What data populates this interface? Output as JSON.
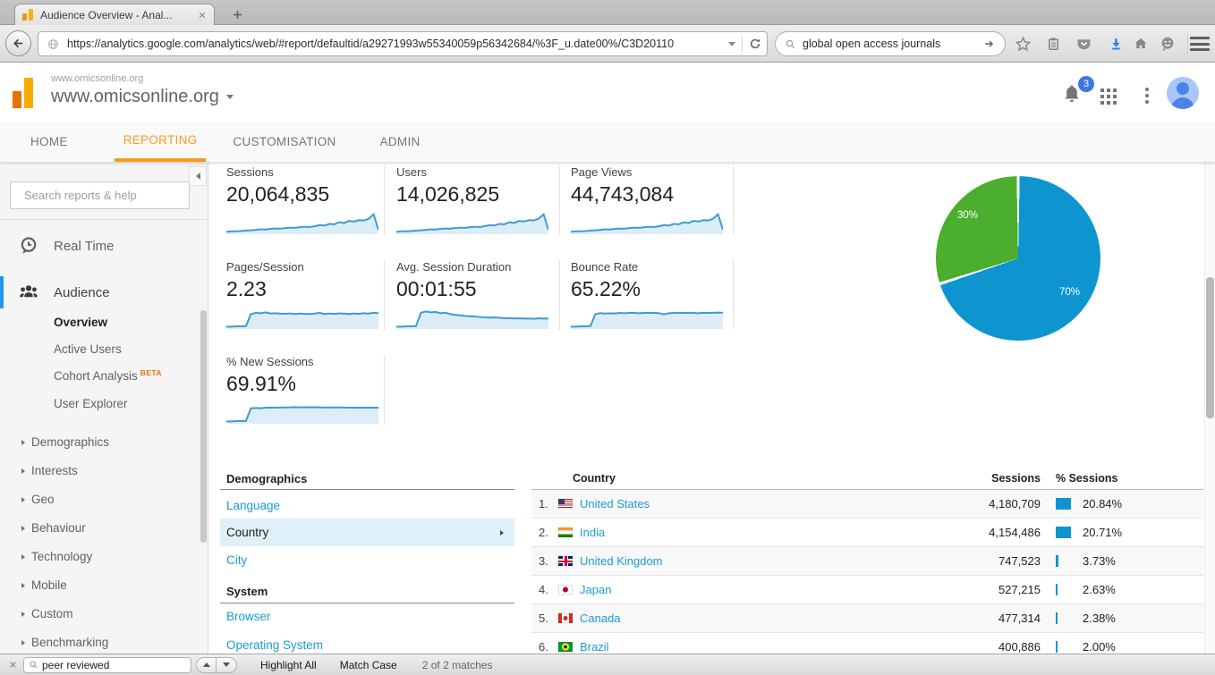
{
  "browser": {
    "tab_title": "Audience Overview - Anal...",
    "url": "https://analytics.google.com/analytics/web/#report/defaultid/a29271993w55340059p56342684/%3F_u.date00%/C3D20110",
    "search_value": "global open access journals"
  },
  "ga_header": {
    "account_small": "www.omicsonline.org",
    "property": "www.omicsonline.org",
    "notification_count": "3"
  },
  "nav": {
    "tabs": [
      {
        "label": "HOME"
      },
      {
        "label": "REPORTING",
        "active": true
      },
      {
        "label": "CUSTOMISATION"
      },
      {
        "label": "ADMIN"
      }
    ]
  },
  "sidebar": {
    "search_placeholder": "Search reports & help",
    "items": [
      {
        "label": "Real Time",
        "icon": "clock-bubble"
      },
      {
        "label": "Audience",
        "icon": "people",
        "active": true
      }
    ],
    "audience_children": [
      "Overview",
      "Active Users",
      "Cohort Analysis",
      "User Explorer"
    ],
    "beta_label": "BETA",
    "expandable": [
      "Demographics",
      "Interests",
      "Geo",
      "Behaviour",
      "Technology",
      "Mobile",
      "Custom",
      "Benchmarking"
    ]
  },
  "metrics": [
    {
      "label": "Sessions",
      "value": "20,064,835",
      "spark": [
        0.06,
        0.08,
        0.09,
        0.1,
        0.12,
        0.13,
        0.15,
        0.18,
        0.17,
        0.2,
        0.22,
        0.21,
        0.24,
        0.26,
        0.25,
        0.28,
        0.3,
        0.29,
        0.33,
        0.38,
        0.36,
        0.44,
        0.42,
        0.52,
        0.48,
        0.58,
        0.55,
        0.62,
        0.6,
        0.68,
        0.9,
        0.15
      ]
    },
    {
      "label": "Users",
      "value": "14,026,825",
      "spark": [
        0.06,
        0.08,
        0.09,
        0.1,
        0.12,
        0.13,
        0.15,
        0.18,
        0.17,
        0.2,
        0.22,
        0.21,
        0.24,
        0.26,
        0.25,
        0.28,
        0.3,
        0.29,
        0.33,
        0.38,
        0.36,
        0.44,
        0.42,
        0.52,
        0.48,
        0.58,
        0.55,
        0.62,
        0.6,
        0.68,
        0.9,
        0.15
      ]
    },
    {
      "label": "Page Views",
      "value": "44,743,084",
      "spark": [
        0.06,
        0.08,
        0.09,
        0.1,
        0.12,
        0.13,
        0.15,
        0.18,
        0.17,
        0.2,
        0.22,
        0.21,
        0.24,
        0.26,
        0.25,
        0.28,
        0.3,
        0.29,
        0.33,
        0.38,
        0.36,
        0.44,
        0.42,
        0.52,
        0.48,
        0.58,
        0.55,
        0.62,
        0.6,
        0.68,
        0.9,
        0.15
      ]
    },
    {
      "label": "Pages/Session",
      "value": "2.23",
      "spark": [
        0.06,
        0.06,
        0.07,
        0.07,
        0.08,
        0.65,
        0.72,
        0.7,
        0.74,
        0.69,
        0.7,
        0.68,
        0.67,
        0.69,
        0.66,
        0.68,
        0.67,
        0.66,
        0.68,
        0.72,
        0.66,
        0.68,
        0.67,
        0.69,
        0.68,
        0.66,
        0.69,
        0.67,
        0.7,
        0.68,
        0.72,
        0.7
      ]
    },
    {
      "label": "Avg. Session Duration",
      "value": "00:01:55",
      "spark": [
        0.06,
        0.06,
        0.07,
        0.07,
        0.08,
        0.72,
        0.78,
        0.74,
        0.76,
        0.7,
        0.72,
        0.66,
        0.62,
        0.6,
        0.57,
        0.55,
        0.54,
        0.52,
        0.5,
        0.49,
        0.5,
        0.48,
        0.46,
        0.47,
        0.45,
        0.46,
        0.44,
        0.45,
        0.43,
        0.46,
        0.44,
        0.45
      ]
    },
    {
      "label": "Bounce Rate",
      "value": "65.22%",
      "spark": [
        0.06,
        0.06,
        0.07,
        0.07,
        0.08,
        0.65,
        0.7,
        0.68,
        0.7,
        0.69,
        0.71,
        0.7,
        0.72,
        0.71,
        0.7,
        0.72,
        0.71,
        0.72,
        0.7,
        0.64,
        0.7,
        0.71,
        0.72,
        0.71,
        0.72,
        0.71,
        0.7,
        0.72,
        0.71,
        0.72,
        0.73,
        0.72
      ]
    },
    {
      "label": "% New Sessions",
      "value": "69.91%",
      "spark": [
        0.06,
        0.06,
        0.07,
        0.07,
        0.08,
        0.68,
        0.7,
        0.69,
        0.71,
        0.72,
        0.71,
        0.73,
        0.72,
        0.73,
        0.74,
        0.73,
        0.74,
        0.73,
        0.74,
        0.73,
        0.72,
        0.73,
        0.72,
        0.73,
        0.72,
        0.71,
        0.72,
        0.71,
        0.72,
        0.71,
        0.72,
        0.71
      ]
    }
  ],
  "pie": {
    "slices": [
      {
        "label": "70%",
        "value": 70,
        "color": "#0e95d0"
      },
      {
        "label": "30%",
        "value": 30,
        "color": "#4bae2f"
      }
    ]
  },
  "demographics_panel": {
    "sections": [
      {
        "heading": "Demographics",
        "links": [
          "Language",
          "Country",
          "City"
        ],
        "selected": "Country"
      },
      {
        "heading": "System",
        "links": [
          "Browser",
          "Operating System"
        ]
      }
    ]
  },
  "country_table": {
    "headers": {
      "country": "Country",
      "sessions": "Sessions",
      "pct": "% Sessions"
    },
    "rows": [
      {
        "rank": "1.",
        "flag": "us-flag",
        "country": "United States",
        "sessions": "4,180,709",
        "pct": "20.84%",
        "pct_val": 20.84
      },
      {
        "rank": "2.",
        "flag": "in-flag",
        "country": "India",
        "sessions": "4,154,486",
        "pct": "20.71%",
        "pct_val": 20.71
      },
      {
        "rank": "3.",
        "flag": "gb-flag",
        "country": "United Kingdom",
        "sessions": "747,523",
        "pct": "3.73%",
        "pct_val": 3.73
      },
      {
        "rank": "4.",
        "flag": "jp-flag",
        "country": "Japan",
        "sessions": "527,215",
        "pct": "2.63%",
        "pct_val": 2.63
      },
      {
        "rank": "5.",
        "flag": "ca-flag",
        "country": "Canada",
        "sessions": "477,314",
        "pct": "2.38%",
        "pct_val": 2.38
      },
      {
        "rank": "6.",
        "flag": "br-flag",
        "country": "Brazil",
        "sessions": "400,886",
        "pct": "2.00%",
        "pct_val": 2.0
      }
    ]
  },
  "findbar": {
    "query": "peer reviewed",
    "highlight_all": "Highlight All",
    "match_case": "Match Case",
    "status": "2 of 2 matches"
  },
  "colors": {
    "accent_orange": "#f89b1b",
    "link_blue": "#1a9bd7",
    "spark_line": "#3e9bd4",
    "spark_fill": "#ddedf7",
    "bar_blue": "#0e95d0",
    "badge_blue": "#3b78e7"
  },
  "icons": {
    "favicon": "analytics-bars",
    "tab_close": "x",
    "new_tab": "plus",
    "back": "arrow-left",
    "site": "globe",
    "url_dropdown": "caret-down",
    "reload": "refresh",
    "search": "magnifier",
    "search_go": "arrow-right",
    "bookmark": "star",
    "reading_list": "clipboard",
    "pocket": "pocket",
    "downloads": "arrow-down",
    "home": "home",
    "hello": "smiley",
    "menu": "hamburger",
    "notifications": "bell",
    "apps": "grid",
    "more": "kebab",
    "account": "avatar",
    "realtime": "clock-bubble",
    "audience": "people",
    "expand": "caret-right",
    "collapse_sidebar": "caret-left",
    "find_close": "x",
    "find_prev": "chevron-up",
    "find_next": "chevron-down"
  }
}
